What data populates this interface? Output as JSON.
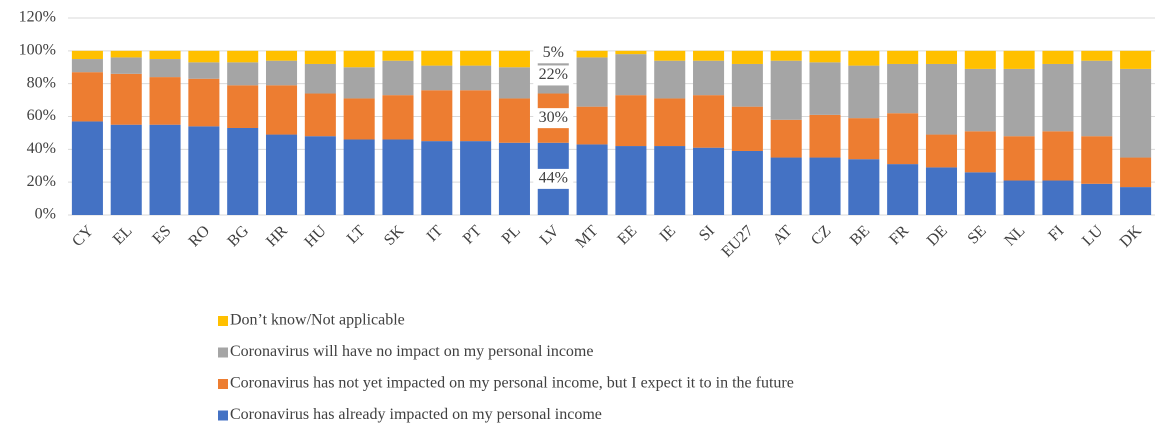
{
  "chart_data": {
    "type": "stacked_bar",
    "categories": [
      "CY",
      "EL",
      "ES",
      "RO",
      "BG",
      "HR",
      "HU",
      "LT",
      "SK",
      "IT",
      "PT",
      "PL",
      "LV",
      "MT",
      "EE",
      "IE",
      "SI",
      "EU27",
      "AT",
      "CZ",
      "BE",
      "FR",
      "DE",
      "SE",
      "NL",
      "FI",
      "LU",
      "DK"
    ],
    "series": [
      {
        "name": "Coronavirus has already impacted on my personal income",
        "color": "#4472c4",
        "values": [
          57,
          55,
          55,
          54,
          53,
          49,
          48,
          46,
          46,
          45,
          45,
          44,
          44,
          43,
          42,
          42,
          41,
          39,
          35,
          35,
          34,
          31,
          29,
          26,
          21,
          21,
          19,
          17
        ],
        "value_labels": [
          null,
          null,
          null,
          null,
          null,
          null,
          null,
          null,
          null,
          null,
          null,
          null,
          "44%",
          null,
          null,
          null,
          null,
          null,
          null,
          null,
          null,
          null,
          null,
          null,
          null,
          null,
          null,
          null
        ]
      },
      {
        "name": "Coronavirus has not yet impacted on my personal income, but I expect it to in the future",
        "color": "#ed7d31",
        "values": [
          30,
          31,
          29,
          29,
          26,
          30,
          26,
          25,
          27,
          31,
          31,
          27,
          30,
          23,
          31,
          29,
          32,
          27,
          23,
          26,
          25,
          31,
          20,
          25,
          27,
          30,
          29,
          18
        ],
        "value_labels": [
          null,
          null,
          null,
          null,
          null,
          null,
          null,
          null,
          null,
          null,
          null,
          null,
          "30%",
          null,
          null,
          null,
          null,
          null,
          null,
          null,
          null,
          null,
          null,
          null,
          null,
          null,
          null,
          null
        ]
      },
      {
        "name": "Coronavirus will have no impact on my personal income",
        "color": "#a5a5a5",
        "values": [
          8,
          10,
          11,
          10,
          14,
          15,
          18,
          19,
          21,
          15,
          15,
          19,
          22,
          30,
          25,
          23,
          21,
          26,
          36,
          32,
          32,
          30,
          43,
          38,
          41,
          41,
          46,
          54
        ],
        "value_labels": [
          null,
          null,
          null,
          null,
          null,
          null,
          null,
          null,
          null,
          null,
          null,
          null,
          "22%",
          null,
          null,
          null,
          null,
          null,
          null,
          null,
          null,
          null,
          null,
          null,
          null,
          null,
          null,
          null
        ]
      },
      {
        "name": "Don’t know/Not applicable",
        "color": "#ffc000",
        "values": [
          5,
          4,
          5,
          7,
          7,
          6,
          8,
          10,
          6,
          9,
          9,
          10,
          5,
          4,
          2,
          6,
          6,
          8,
          6,
          7,
          9,
          8,
          8,
          11,
          11,
          8,
          6,
          11
        ],
        "value_labels": [
          null,
          null,
          null,
          null,
          null,
          null,
          null,
          null,
          null,
          null,
          null,
          null,
          "5%",
          null,
          null,
          null,
          null,
          null,
          null,
          null,
          null,
          null,
          null,
          null,
          null,
          null,
          null,
          null
        ]
      }
    ],
    "ylim": [
      0,
      120
    ],
    "yticks": [
      {
        "value": 0,
        "label": "0%"
      },
      {
        "value": 20,
        "label": "20%"
      },
      {
        "value": 40,
        "label": "40%"
      },
      {
        "value": 60,
        "label": "60%"
      },
      {
        "value": 80,
        "label": "80%"
      },
      {
        "value": 100,
        "label": "100%"
      },
      {
        "value": 120,
        "label": "120%"
      }
    ],
    "grid": true,
    "legend": "bottom"
  }
}
